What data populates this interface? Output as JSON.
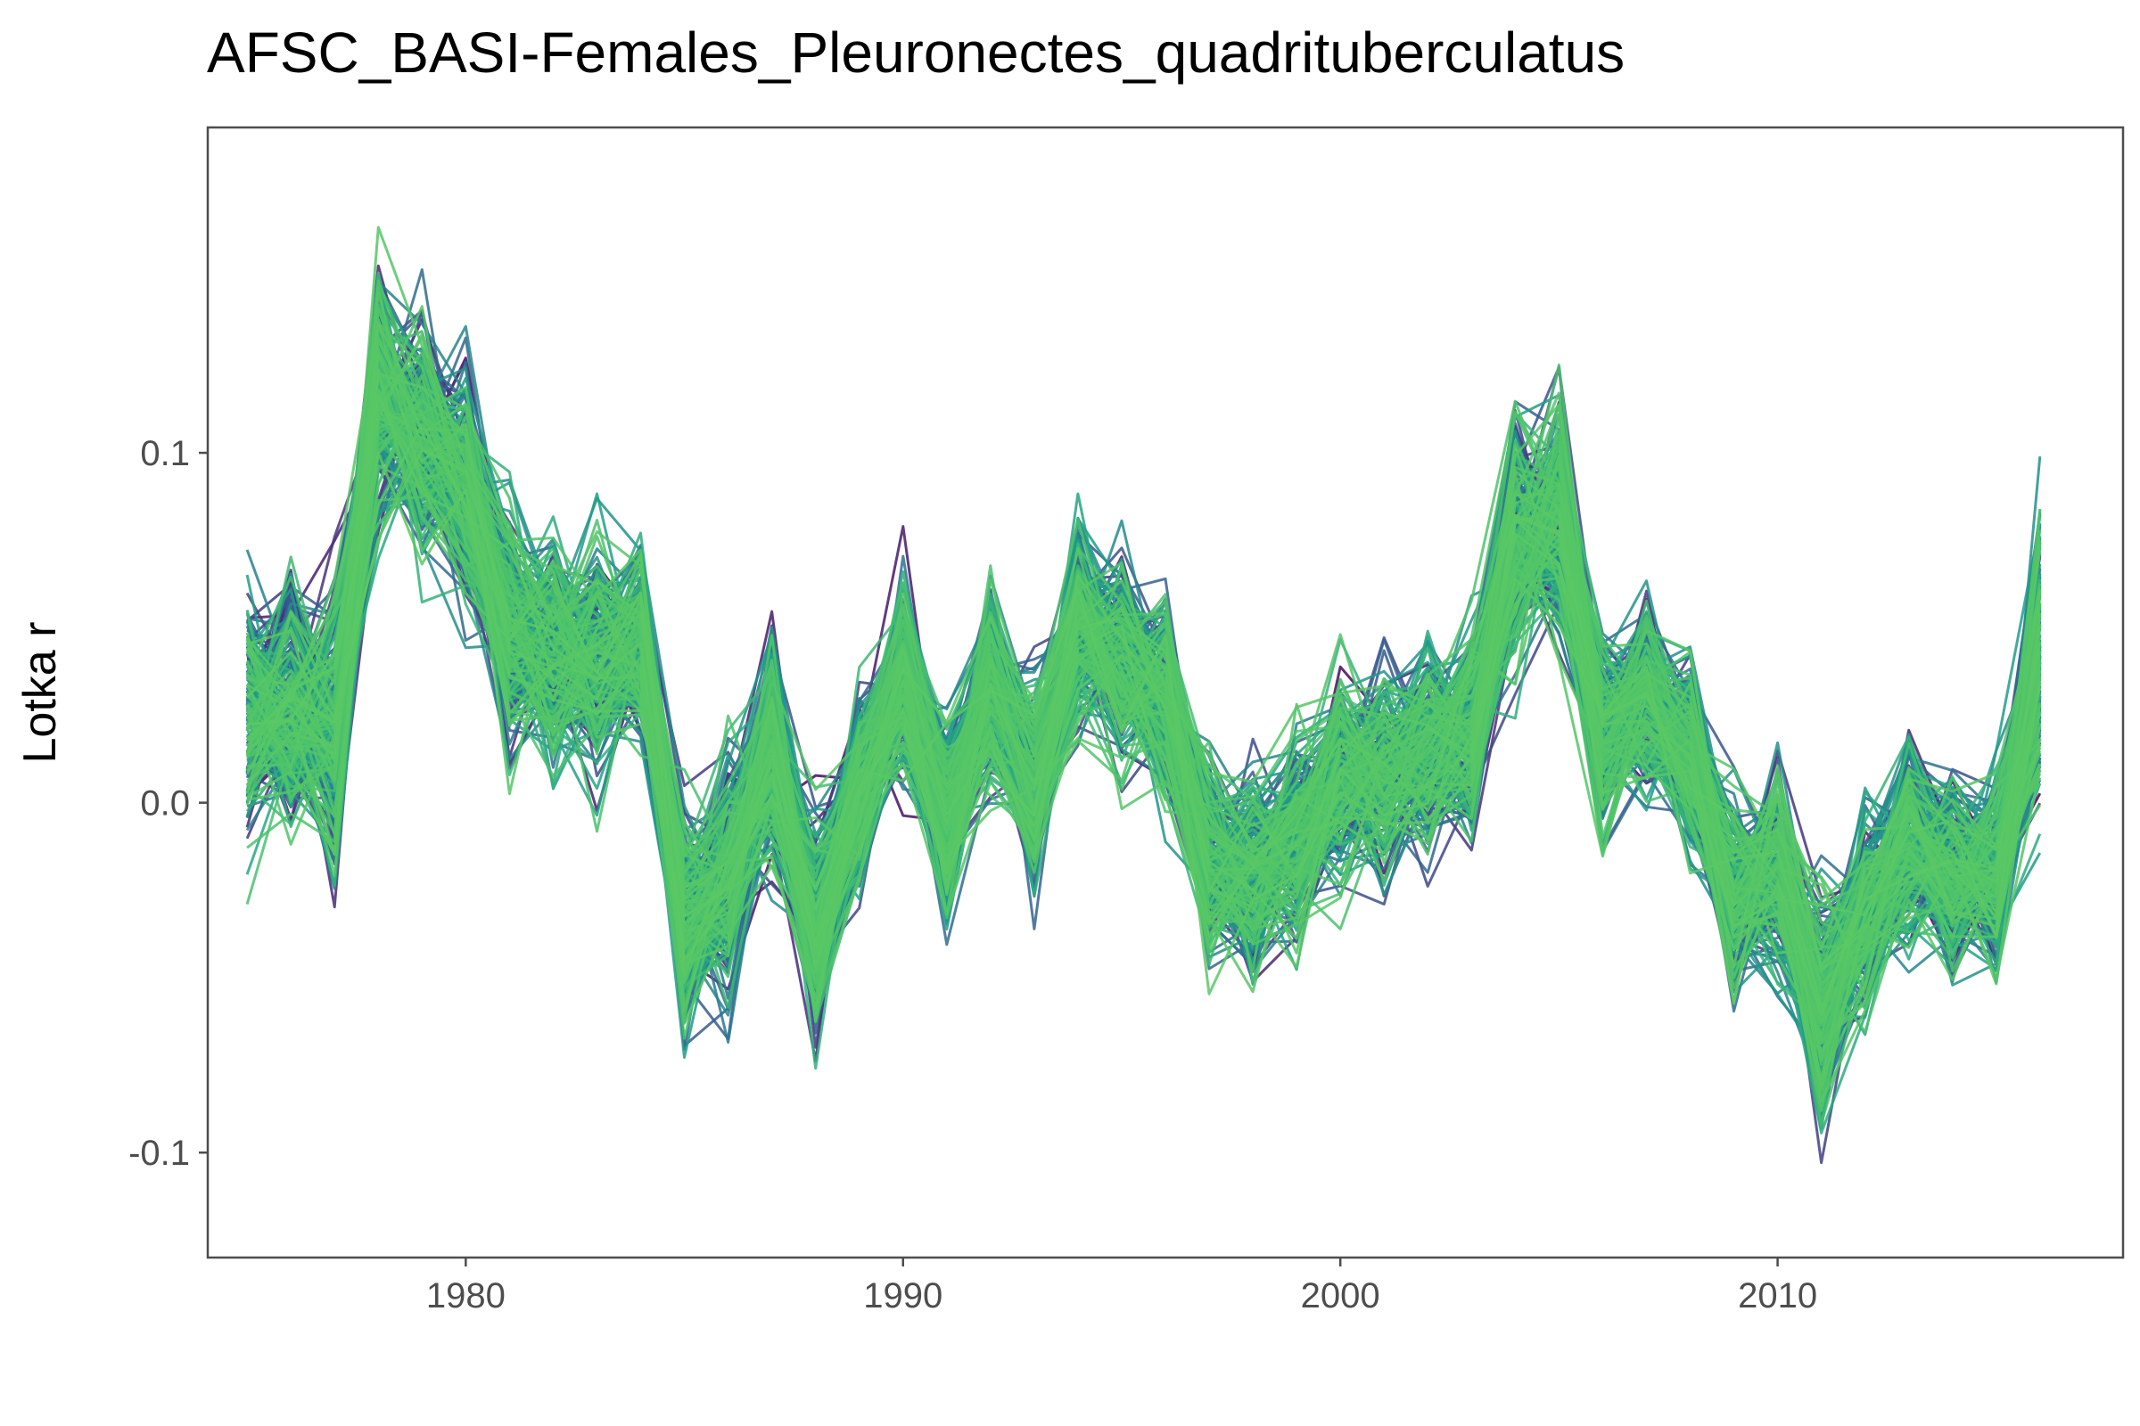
{
  "chart_data": {
    "type": "line",
    "title": "AFSC_BASI-Females_Pleuronectes_quadrituberculatus",
    "xlabel": "",
    "ylabel": "Lotka r",
    "x": [
      1975,
      1976,
      1977,
      1978,
      1979,
      1980,
      1981,
      1982,
      1983,
      1984,
      1985,
      1986,
      1987,
      1988,
      1989,
      1990,
      1991,
      1992,
      1993,
      1994,
      1995,
      1996,
      1997,
      1998,
      1999,
      2000,
      2001,
      2002,
      2003,
      2004,
      2005,
      2006,
      2007,
      2008,
      2009,
      2010,
      2011,
      2012,
      2013,
      2014,
      2015,
      2016
    ],
    "xlim": [
      1974.1,
      2017.9
    ],
    "ylim": [
      -0.13,
      0.193
    ],
    "xticks": [
      1980,
      1990,
      2000,
      2010
    ],
    "xtick_labels": [
      "1980",
      "1990",
      "2000",
      "2010"
    ],
    "yticks": [
      -0.1,
      0.0,
      0.1
    ],
    "ytick_labels": [
      "-0.1",
      "0.0",
      "0.1"
    ],
    "grid": false,
    "legend": "none",
    "n_series": 240,
    "series_note": "ensemble of bootstrap trajectories colored on a viridis scale (purple to green)",
    "center": [
      0.025,
      0.028,
      0.022,
      0.118,
      0.105,
      0.09,
      0.048,
      0.045,
      0.04,
      0.047,
      -0.035,
      -0.02,
      0.015,
      -0.035,
      0.005,
      0.035,
      -0.005,
      0.035,
      0.005,
      0.05,
      0.04,
      0.03,
      -0.015,
      -0.02,
      -0.01,
      0.008,
      0.01,
      0.015,
      0.02,
      0.075,
      0.08,
      0.018,
      0.03,
      0.015,
      -0.025,
      -0.02,
      -0.06,
      -0.03,
      -0.01,
      -0.02,
      -0.02,
      0.04
    ],
    "spread": [
      0.03,
      0.03,
      0.035,
      0.035,
      0.03,
      0.03,
      0.03,
      0.03,
      0.03,
      0.025,
      0.03,
      0.03,
      0.03,
      0.03,
      0.025,
      0.025,
      0.025,
      0.025,
      0.025,
      0.025,
      0.025,
      0.025,
      0.025,
      0.025,
      0.025,
      0.025,
      0.025,
      0.025,
      0.025,
      0.03,
      0.03,
      0.025,
      0.025,
      0.025,
      0.025,
      0.025,
      0.03,
      0.025,
      0.025,
      0.025,
      0.025,
      0.035
    ],
    "palette": [
      "#440154",
      "#46337e",
      "#365c8d",
      "#277f8e",
      "#1fa187",
      "#4ac16d",
      "#5ac864"
    ]
  }
}
